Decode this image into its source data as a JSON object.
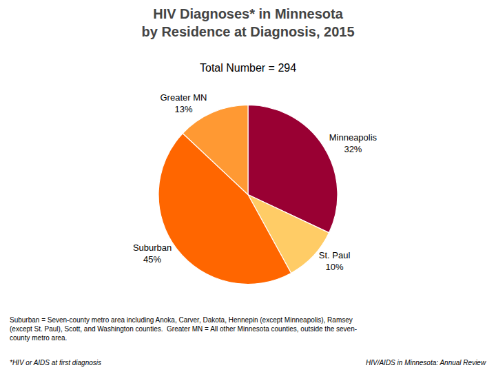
{
  "chart_data": {
    "type": "pie",
    "title": "HIV Diagnoses* in Minnesota\nby Residence at Diagnosis, 2015",
    "subtitle": "Total Number = 294",
    "categories": [
      "Minneapolis",
      "St. Paul",
      "Suburban",
      "Greater MN"
    ],
    "values": [
      32,
      10,
      45,
      13
    ],
    "value_labels": [
      "32%",
      "10%",
      "45%",
      "13%"
    ],
    "colors": [
      "#990033",
      "#FFCC66",
      "#FF6600",
      "#FF9933"
    ],
    "data_labels": true,
    "annotations": [
      "Suburban = Seven-county metro area including Anoka, Carver, Dakota, Hennepin (except Minneapolis), Ramsey",
      "(except St. Paul), Scott, and Washington counties.  Greater MN = All other Minnesota counties, outside the seven-",
      "county metro area.",
      "*HIV or AIDS at first diagnosis",
      "HIV/AIDS in Minnesota: Annual Review"
    ]
  }
}
